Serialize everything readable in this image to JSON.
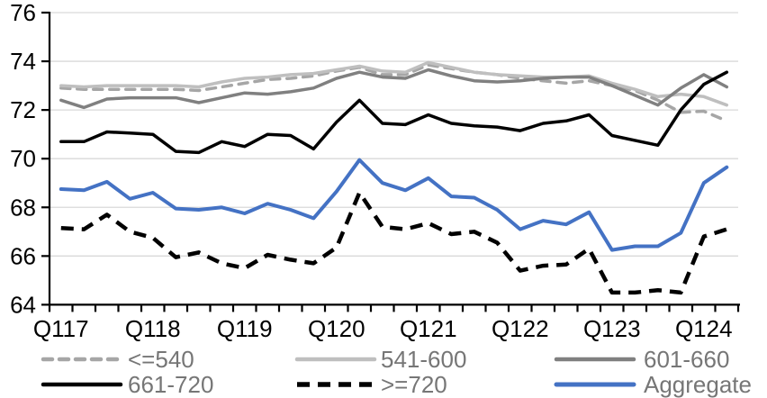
{
  "chart_data": {
    "type": "line",
    "title": "",
    "xlabel": "",
    "ylabel": "",
    "ylim": [
      64,
      76
    ],
    "y_tick_step": 2,
    "y_tick_labels": [
      "76",
      "74",
      "72",
      "70",
      "68",
      "66",
      "64"
    ],
    "x_tick_labels_shown": [
      "Q117",
      "Q118",
      "Q119",
      "Q120",
      "Q121",
      "Q122",
      "Q123",
      "Q124"
    ],
    "x_label_every_n_points": 4,
    "n_points": 30,
    "categories_implied": [
      "2017Q1",
      "2017Q2",
      "2017Q3",
      "2017Q4",
      "2018Q1",
      "2018Q2",
      "2018Q3",
      "2018Q4",
      "2019Q1",
      "2019Q2",
      "2019Q3",
      "2019Q4",
      "2020Q1",
      "2020Q2",
      "2020Q3",
      "2020Q4",
      "2021Q1",
      "2021Q2",
      "2021Q3",
      "2021Q4",
      "2022Q1",
      "2022Q2",
      "2022Q3",
      "2022Q4",
      "2023Q1",
      "2023Q2",
      "2023Q3",
      "2023Q4",
      "2024Q1",
      "2024Q2"
    ],
    "grid": "horizontal",
    "legend_position": "bottom",
    "series": [
      {
        "name": "<=540",
        "color": "#a6a6a6",
        "dash": "10 8",
        "width": 3.5,
        "cap": "round",
        "values": [
          72.9,
          72.85,
          72.85,
          72.85,
          72.85,
          72.85,
          72.8,
          72.95,
          73.1,
          73.25,
          73.3,
          73.4,
          73.6,
          73.75,
          73.45,
          73.45,
          73.85,
          73.7,
          73.55,
          73.45,
          73.3,
          73.2,
          73.1,
          73.2,
          73.0,
          72.8,
          72.4,
          71.9,
          71.95,
          71.55
        ]
      },
      {
        "name": "541-600",
        "color": "#bfbfbf",
        "dash": "",
        "width": 3.5,
        "cap": "round",
        "values": [
          73.0,
          72.95,
          73.0,
          73.0,
          73.0,
          73.0,
          72.95,
          73.15,
          73.3,
          73.35,
          73.45,
          73.5,
          73.65,
          73.8,
          73.6,
          73.55,
          73.95,
          73.75,
          73.55,
          73.45,
          73.4,
          73.35,
          73.35,
          73.4,
          73.1,
          72.85,
          72.55,
          72.65,
          72.55,
          72.2
        ]
      },
      {
        "name": "601-660",
        "color": "#808080",
        "dash": "",
        "width": 3.5,
        "cap": "round",
        "values": [
          72.4,
          72.1,
          72.45,
          72.5,
          72.5,
          72.5,
          72.3,
          72.5,
          72.7,
          72.65,
          72.75,
          72.9,
          73.3,
          73.55,
          73.35,
          73.3,
          73.65,
          73.4,
          73.2,
          73.15,
          73.2,
          73.3,
          73.35,
          73.35,
          73.0,
          72.6,
          72.2,
          72.9,
          73.45,
          72.95
        ]
      },
      {
        "name": "661-720",
        "color": "#000000",
        "dash": "",
        "width": 3.5,
        "cap": "round",
        "values": [
          70.7,
          70.7,
          71.1,
          71.05,
          71.0,
          70.3,
          70.25,
          70.7,
          70.5,
          71.0,
          70.95,
          70.4,
          71.5,
          72.4,
          71.45,
          71.4,
          71.8,
          71.45,
          71.35,
          71.3,
          71.15,
          71.45,
          71.55,
          71.8,
          70.95,
          70.75,
          70.55,
          72.0,
          73.05,
          73.55
        ]
      },
      {
        "name": ">=720",
        "color": "#000000",
        "dash": "14 9",
        "width": 4.5,
        "cap": "butt",
        "values": [
          67.15,
          67.1,
          67.7,
          67.0,
          66.75,
          65.95,
          66.15,
          65.7,
          65.5,
          66.05,
          65.85,
          65.7,
          66.35,
          68.6,
          67.2,
          67.1,
          67.35,
          66.9,
          67.0,
          66.55,
          65.4,
          65.6,
          65.65,
          66.3,
          64.5,
          64.5,
          64.6,
          64.5,
          66.8,
          67.1
        ]
      },
      {
        "name": "Aggregate",
        "color": "#4472c4",
        "dash": "",
        "width": 4,
        "cap": "round",
        "values": [
          68.75,
          68.7,
          69.05,
          68.35,
          68.6,
          67.95,
          67.9,
          68.0,
          67.75,
          68.15,
          67.9,
          67.55,
          68.65,
          69.95,
          69.0,
          68.7,
          69.2,
          68.45,
          68.4,
          67.9,
          67.1,
          67.45,
          67.3,
          67.8,
          66.25,
          66.4,
          66.4,
          66.95,
          69.0,
          69.65
        ]
      }
    ],
    "legend": {
      "rows": [
        [
          "<=540",
          "541-600",
          "601-660"
        ],
        [
          "661-720",
          ">=720",
          "Aggregate"
        ]
      ],
      "text_color": "#767676"
    },
    "colors": {
      "gridline": "#d9d9d9",
      "axis": "#000000",
      "axis_label_text": "#000000"
    }
  }
}
